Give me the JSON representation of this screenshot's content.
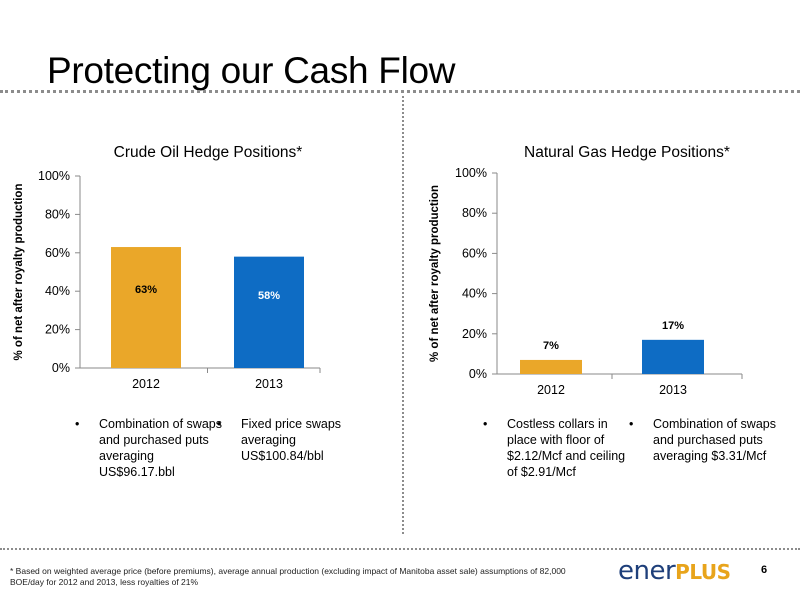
{
  "slide": {
    "title": "Protecting our Cash Flow",
    "footnote": "* Based on weighted average price (before premiums), average annual production (excluding impact of Manitoba asset sale) assumptions of 82,000 BOE/day for 2012 and 2013, less royalties of 21%",
    "logo_part1": "ener",
    "logo_part2": "PLUS",
    "page_number": "6"
  },
  "chart_data": [
    {
      "type": "bar",
      "title": "Crude Oil Hedge Positions*",
      "ylabel": "% of net after royalty production",
      "xlabel": "",
      "categories": [
        "2012",
        "2013"
      ],
      "values": [
        63,
        58
      ],
      "data_labels": [
        "63%",
        "58%"
      ],
      "bar_colors": [
        "#EAA729",
        "#0E6CC4"
      ],
      "label_colors": [
        "#000000",
        "#FFFFFF"
      ],
      "ylim": [
        0,
        100
      ],
      "yticks": [
        "0%",
        "20%",
        "40%",
        "60%",
        "80%",
        "100%"
      ],
      "grid": false,
      "legend": "none"
    },
    {
      "type": "bar",
      "title": "Natural Gas Hedge Positions*",
      "ylabel": "% of net after royalty production",
      "xlabel": "",
      "categories": [
        "2012",
        "2013"
      ],
      "values": [
        7,
        17
      ],
      "data_labels": [
        "7%",
        "17%"
      ],
      "bar_colors": [
        "#EAA729",
        "#0E6CC4"
      ],
      "label_colors": [
        "#000000",
        "#000000"
      ],
      "ylim": [
        0,
        100
      ],
      "yticks": [
        "0%",
        "20%",
        "40%",
        "60%",
        "80%",
        "100%"
      ],
      "grid": false,
      "legend": "none"
    }
  ],
  "bullets": {
    "oil": [
      "Combination of swaps and purchased puts averaging US$96.17.bbl",
      "Fixed price swaps averaging US$100.84/bbl"
    ],
    "gas": [
      "Costless collars in place with floor of $2.12/Mcf and ceiling of $2.91/Mcf",
      "Combination of swaps and purchased puts averaging $3.31/Mcf"
    ],
    "marker": "•"
  }
}
